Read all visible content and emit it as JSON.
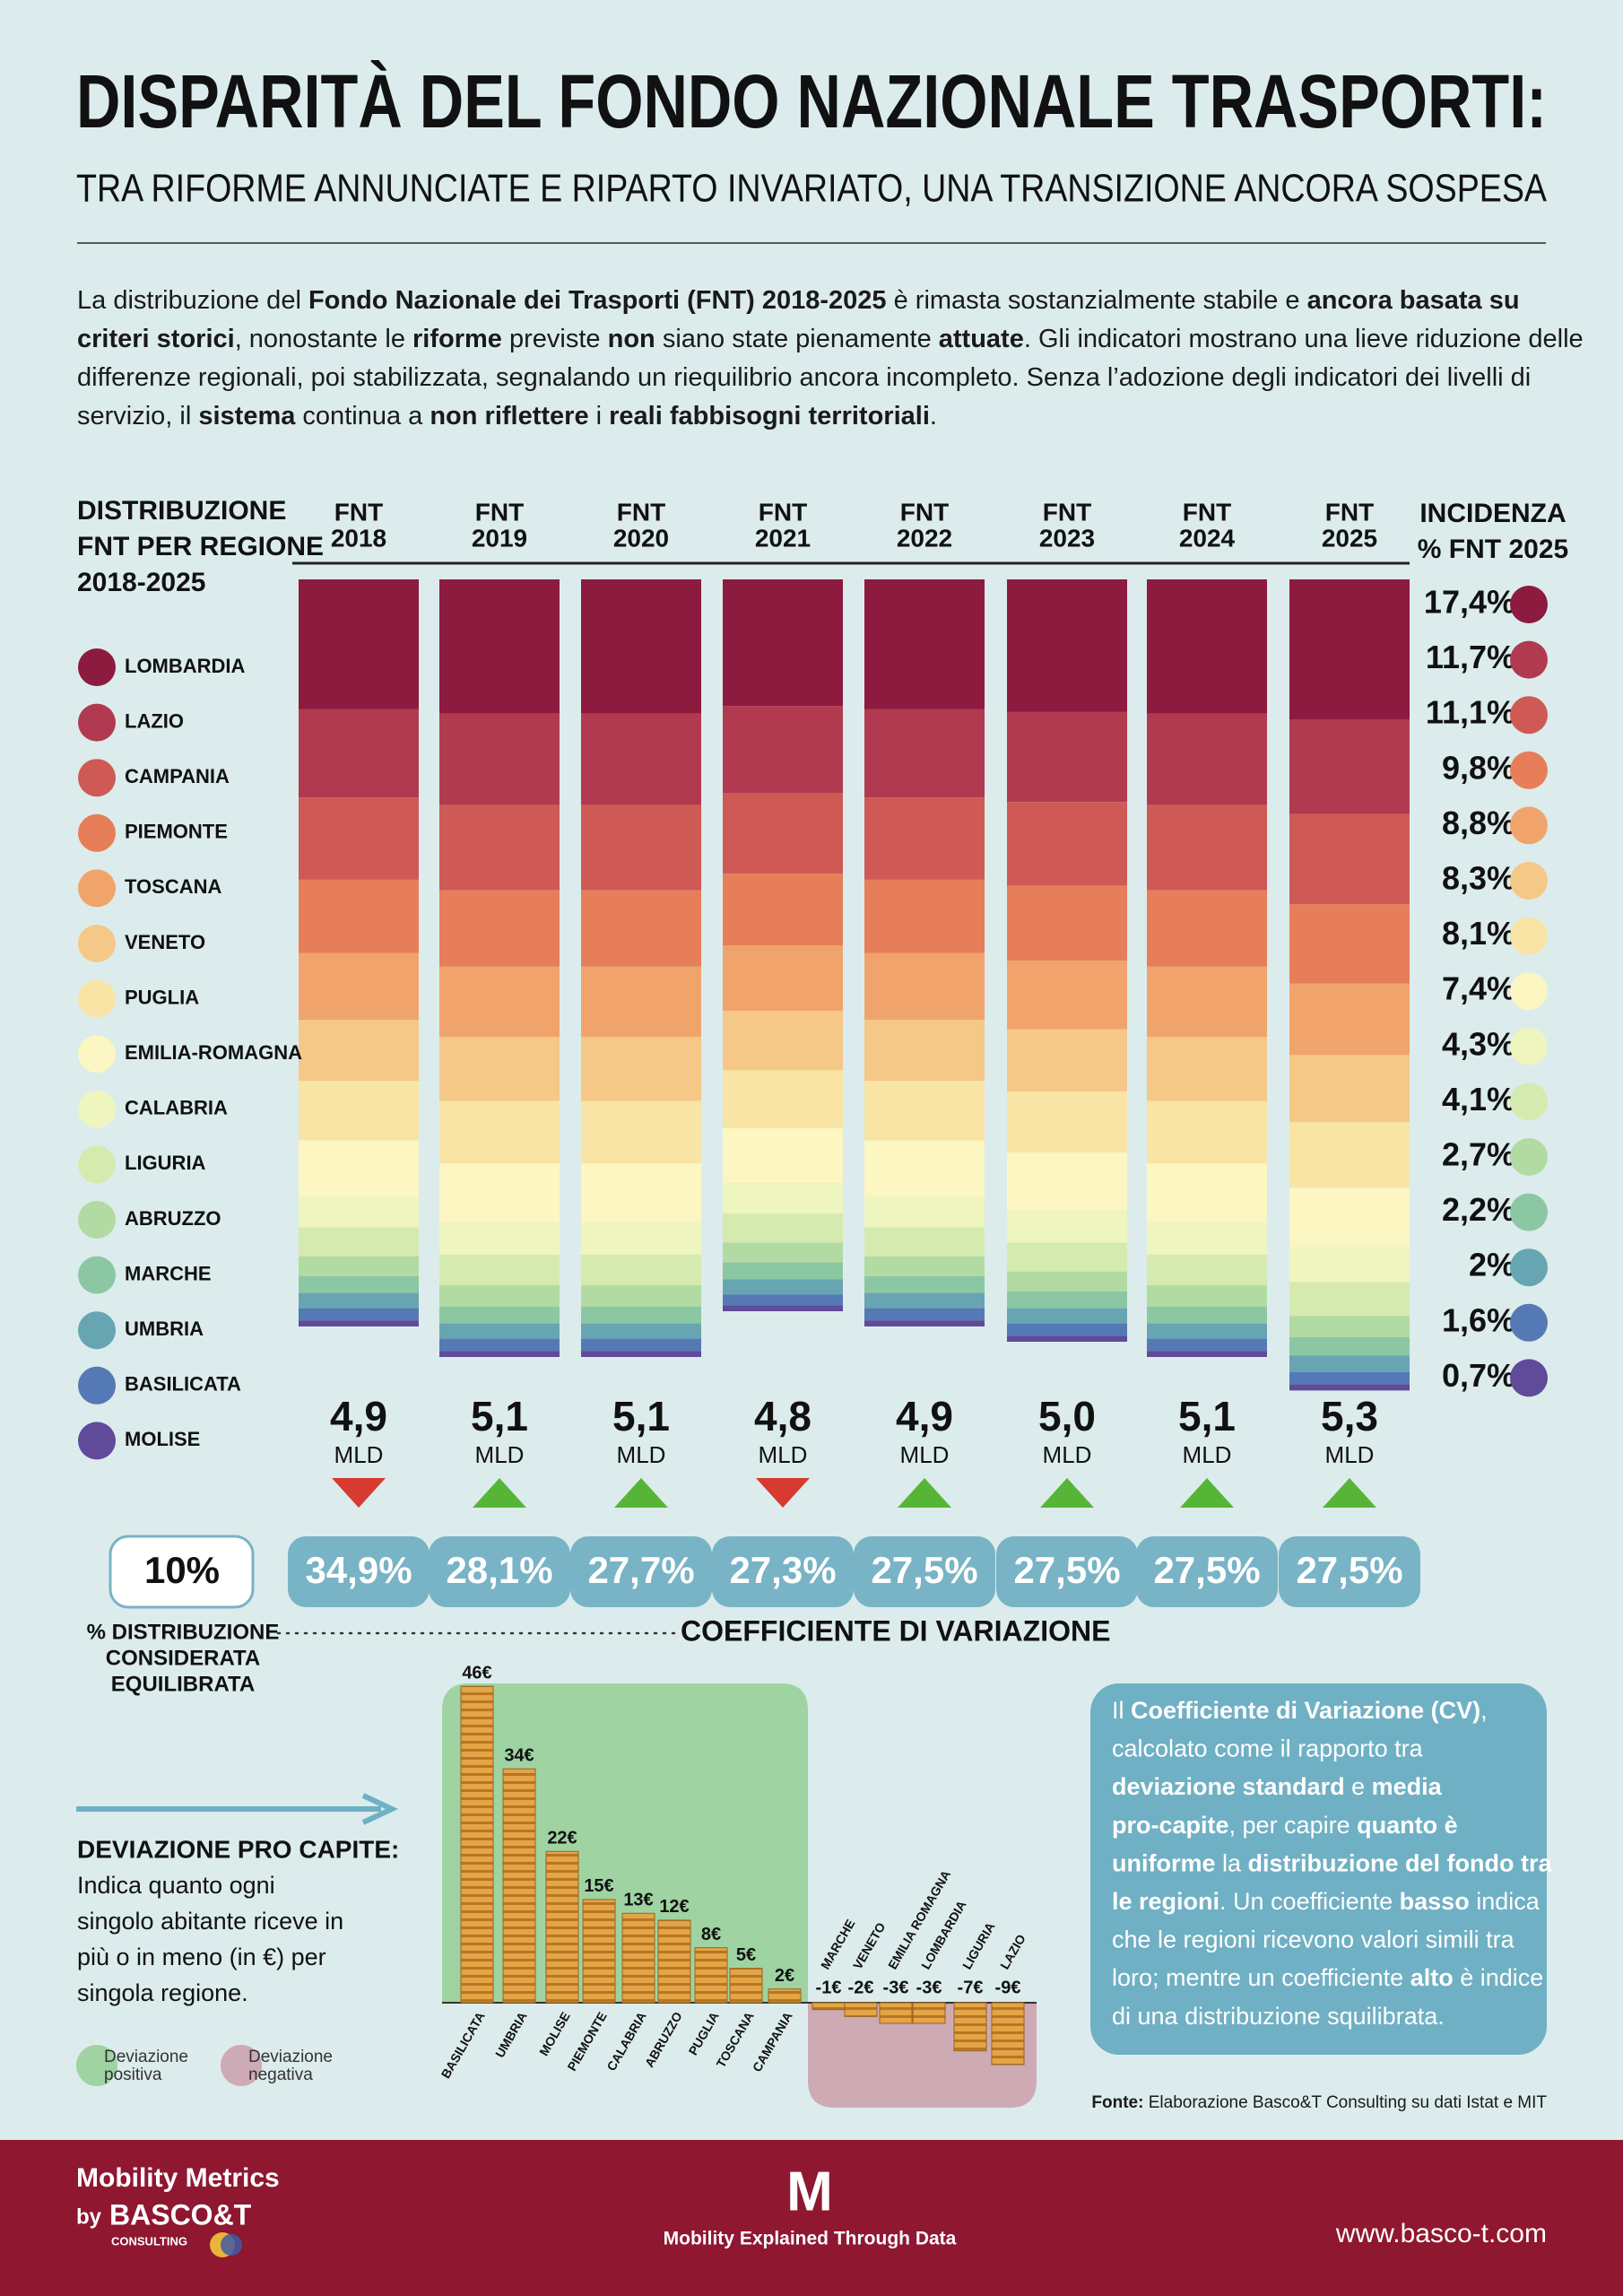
{
  "header": {
    "title": "DISPARITÀ DEL FONDO NAZIONALE TRASPORTI:",
    "subtitle": "TRA RIFORME ANNUNCIATE E RIPARTO INVARIATO, UNA TRANSIZIONE ANCORA SOSPESA"
  },
  "intro": [
    [
      {
        "text": "La distribuzione del "
      },
      {
        "text": "Fondo Nazionale dei Trasporti (FNT) 2018-2025",
        "bold": true
      },
      {
        "text": " è rimasta sostanzialmente stabile e "
      },
      {
        "text": "ancora basata su",
        "bold": true
      }
    ],
    [
      {
        "text": "criteri storici",
        "bold": true
      },
      {
        "text": ", nonostante le "
      },
      {
        "text": "riforme",
        "bold": true
      },
      {
        "text": " previste "
      },
      {
        "text": "non",
        "bold": true
      },
      {
        "text": " siano state pienamente "
      },
      {
        "text": "attuate",
        "bold": true
      },
      {
        "text": ". Gli indicatori mostrano una lieve riduzione delle"
      }
    ],
    [
      {
        "text": "differenze regionali, poi stabilizzata, segnalando un riequilibrio ancora incompleto. Senza l’adozione degli indicatori dei livelli di"
      }
    ],
    [
      {
        "text": "servizio, il "
      },
      {
        "text": "sistema",
        "bold": true
      },
      {
        "text": " continua a "
      },
      {
        "text": "non riflettere",
        "bold": true
      },
      {
        "text": " i "
      },
      {
        "text": "reali fabbisogni territoriali",
        "bold": true
      },
      {
        "text": "."
      }
    ]
  ],
  "chart_data": [
    {
      "type": "stacked-bar",
      "legend_title": [
        "DISTRIBUZIONE",
        "FNT PER REGIONE",
        "2018-2025"
      ],
      "categories": [
        [
          "FNT",
          "2018"
        ],
        [
          "FNT",
          "2019"
        ],
        [
          "FNT",
          "2020"
        ],
        [
          "FNT",
          "2021"
        ],
        [
          "FNT",
          "2022"
        ],
        [
          "FNT",
          "2023"
        ],
        [
          "FNT",
          "2024"
        ],
        [
          "FNT",
          "2025"
        ]
      ],
      "series": [
        {
          "name": "LOMBARDIA",
          "color": "#8d1a3f",
          "values": [
            0.85,
            0.88,
            0.88,
            0.83,
            0.85,
            0.87,
            0.88,
            0.92
          ]
        },
        {
          "name": "LAZIO",
          "color": "#b23a50",
          "values": [
            0.58,
            0.6,
            0.6,
            0.57,
            0.58,
            0.59,
            0.6,
            0.62
          ]
        },
        {
          "name": "CAMPANIA",
          "color": "#cf5a55",
          "values": [
            0.54,
            0.56,
            0.56,
            0.53,
            0.54,
            0.55,
            0.56,
            0.59
          ]
        },
        {
          "name": "PIEMONTE",
          "color": "#e67e5a",
          "values": [
            0.48,
            0.5,
            0.5,
            0.47,
            0.48,
            0.49,
            0.5,
            0.52
          ]
        },
        {
          "name": "TOSCANA",
          "color": "#f0a46c",
          "values": [
            0.44,
            0.46,
            0.46,
            0.43,
            0.44,
            0.45,
            0.46,
            0.47
          ]
        },
        {
          "name": "VENETO",
          "color": "#f5c887",
          "values": [
            0.4,
            0.42,
            0.42,
            0.39,
            0.4,
            0.41,
            0.42,
            0.44
          ]
        },
        {
          "name": "PUGLIA",
          "color": "#f8e4a4",
          "values": [
            0.39,
            0.41,
            0.41,
            0.38,
            0.39,
            0.4,
            0.41,
            0.43
          ]
        },
        {
          "name": "EMILIA-ROMAGNA",
          "color": "#fbf6c2",
          "values": [
            0.37,
            0.39,
            0.39,
            0.36,
            0.37,
            0.38,
            0.39,
            0.39
          ]
        },
        {
          "name": "CALABRIA",
          "color": "#eef5bf",
          "values": [
            0.2,
            0.21,
            0.21,
            0.2,
            0.2,
            0.21,
            0.21,
            0.23
          ]
        },
        {
          "name": "LIGURIA",
          "color": "#d5eaae",
          "values": [
            0.19,
            0.2,
            0.2,
            0.19,
            0.19,
            0.19,
            0.2,
            0.22
          ]
        },
        {
          "name": "ABRUZZO",
          "color": "#b1dba2",
          "values": [
            0.13,
            0.14,
            0.14,
            0.13,
            0.13,
            0.13,
            0.14,
            0.14
          ]
        },
        {
          "name": "MARCHE",
          "color": "#8cc7a4",
          "values": [
            0.11,
            0.11,
            0.11,
            0.11,
            0.11,
            0.11,
            0.11,
            0.12
          ]
        },
        {
          "name": "UMBRIA",
          "color": "#68a5b2",
          "values": [
            0.1,
            0.1,
            0.1,
            0.1,
            0.1,
            0.1,
            0.1,
            0.11
          ]
        },
        {
          "name": "BASILICATA",
          "color": "#5579b4",
          "values": [
            0.08,
            0.08,
            0.08,
            0.07,
            0.08,
            0.08,
            0.08,
            0.08
          ]
        },
        {
          "name": "MOLISE",
          "color": "#5f4b99",
          "values": [
            0.04,
            0.04,
            0.04,
            0.04,
            0.04,
            0.04,
            0.04,
            0.04
          ]
        }
      ],
      "totals": {
        "values": [
          4.9,
          5.1,
          5.1,
          4.8,
          4.9,
          5.0,
          5.1,
          5.3
        ],
        "value_labels": [
          "4,9",
          "5,1",
          "5,1",
          "4,8",
          "4,9",
          "5,0",
          "5,1",
          "5,3"
        ],
        "unit": "MLD",
        "trend": [
          "down",
          "up",
          "up",
          "down",
          "up",
          "up",
          "up",
          "up"
        ]
      },
      "share_title": [
        "INCIDENZA",
        "% FNT 2025"
      ],
      "share_values": [
        17.4,
        11.7,
        11.1,
        9.8,
        8.8,
        8.3,
        8.1,
        7.4,
        4.3,
        4.1,
        2.7,
        2.2,
        2,
        1.6,
        0.7
      ],
      "share_labels": [
        "17,4%",
        "11,7%",
        "11,1%",
        "9,8%",
        "8,8%",
        "8,3%",
        "8,1%",
        "7,4%",
        "4,3%",
        "4,1%",
        "2,7%",
        "2,2%",
        "2%",
        "1,6%",
        "0,7%"
      ]
    },
    {
      "type": "value-boxes",
      "title": "COEFFICIENTE DI VARIAZIONE",
      "values": [
        34.9,
        28.1,
        27.7,
        27.3,
        27.5,
        27.5,
        27.5,
        27.5
      ],
      "value_labels": [
        "34,9%",
        "28,1%",
        "27,7%",
        "27,3%",
        "27,5%",
        "27,5%",
        "27,5%",
        "27,5%"
      ],
      "reference": {
        "value": 10,
        "label": "10%"
      },
      "reference_title": [
        "% DISTRIBUZIONE",
        "CONSIDERATA",
        "EQUILIBRATA"
      ]
    },
    {
      "type": "coin-bar",
      "title": "DEVIAZIONE PRO CAPITE:",
      "description": [
        "Indica quanto ogni",
        "singolo abitante riceve in",
        "più o in meno (in €) per",
        "singola regione."
      ],
      "categories": [
        "BASILICATA",
        "UMBRIA",
        "MOLISE",
        "PIEMONTE",
        "CALABRIA",
        "ABRUZZO",
        "PUGLIA",
        "TOSCANA",
        "CAMPANIA",
        "MARCHE",
        "VENETO",
        "EMILIA ROMAGNA",
        "LOMBARDIA",
        "LIGURIA",
        "LAZIO"
      ],
      "values": [
        46,
        34,
        22,
        15,
        13,
        12,
        8,
        5,
        2,
        -1,
        -2,
        -3,
        -3,
        -7,
        -9
      ],
      "value_labels": [
        "46€",
        "34€",
        "22€",
        "15€",
        "13€",
        "12€",
        "8€",
        "5€",
        "2€",
        "-1€",
        "-2€",
        "-3€",
        "-3€",
        "-7€",
        "-9€"
      ],
      "legend": [
        {
          "lines": [
            "Deviazione",
            "positiva"
          ],
          "color": "#9fd3a2"
        },
        {
          "lines": [
            "Deviazione",
            "negativa"
          ],
          "color": "#cdaab4"
        }
      ]
    }
  ],
  "note": [
    [
      {
        "text": "Il "
      },
      {
        "text": "Coefficiente di Variazione (CV)",
        "bold": true
      },
      {
        "text": ","
      }
    ],
    [
      {
        "text": "calcolato come il rapporto tra"
      }
    ],
    [
      {
        "text": "deviazione standard",
        "bold": true
      },
      {
        "text": " e "
      },
      {
        "text": "media",
        "bold": true
      }
    ],
    [
      {
        "text": "pro-capite",
        "bold": true
      },
      {
        "text": ", per capire "
      },
      {
        "text": "quanto è",
        "bold": true
      }
    ],
    [
      {
        "text": "uniforme",
        "bold": true
      },
      {
        "text": " la "
      },
      {
        "text": "distribuzione del fondo tra",
        "bold": true
      }
    ],
    [
      {
        "text": "le regioni",
        "bold": true
      },
      {
        "text": ". Un coefficiente "
      },
      {
        "text": "basso",
        "bold": true
      },
      {
        "text": " indica"
      }
    ],
    [
      {
        "text": "che le regioni ricevono valori simili tra"
      }
    ],
    [
      {
        "text": "loro; mentre un coefficiente "
      },
      {
        "text": "alto",
        "bold": true
      },
      {
        "text": " è indice"
      }
    ],
    [
      {
        "text": "di una distribuzione squilibrata."
      }
    ]
  ],
  "source": [
    {
      "text": "Fonte:",
      "bold": true
    },
    {
      "text": " Elaborazione Basco&T Consulting su dati Istat e MIT"
    }
  ],
  "footer": {
    "brand": "Mobility Metrics",
    "by": "by",
    "company": "BASCO&T",
    "company_sub": "CONSULTING",
    "logo": "M",
    "tagline": "Mobility Explained Through Data",
    "url": "www.basco-t.com"
  }
}
